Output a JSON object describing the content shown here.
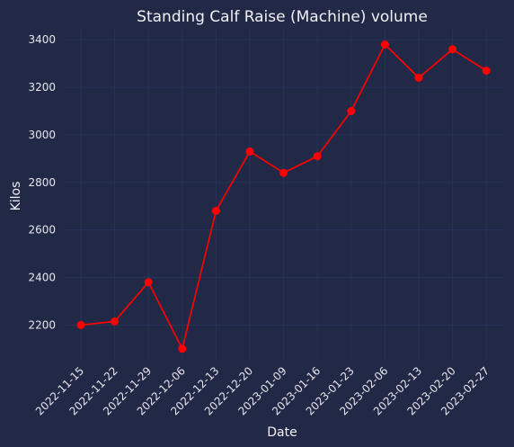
{
  "chart_data": {
    "type": "line",
    "title": "Standing Calf Raise (Machine) volume",
    "xlabel": "Date",
    "ylabel": "Kilos",
    "grid": true,
    "ylim": [
      2050,
      3450
    ],
    "yticks": [
      2200,
      2400,
      2600,
      2800,
      3000,
      3200,
      3400
    ],
    "line_color": "#ff0000",
    "x": [
      "2022-11-15",
      "2022-11-22",
      "2022-11-29",
      "2022-12-06",
      "2022-12-13",
      "2022-12-20",
      "2023-01-09",
      "2023-01-16",
      "2023-01-23",
      "2023-02-06",
      "2023-02-13",
      "2023-02-20",
      "2023-02-27"
    ],
    "series": [
      {
        "values": [
          2200,
          2215,
          2380,
          2100,
          2680,
          2930,
          2840,
          2910,
          3100,
          3380,
          3240,
          3360,
          3270
        ]
      }
    ]
  }
}
